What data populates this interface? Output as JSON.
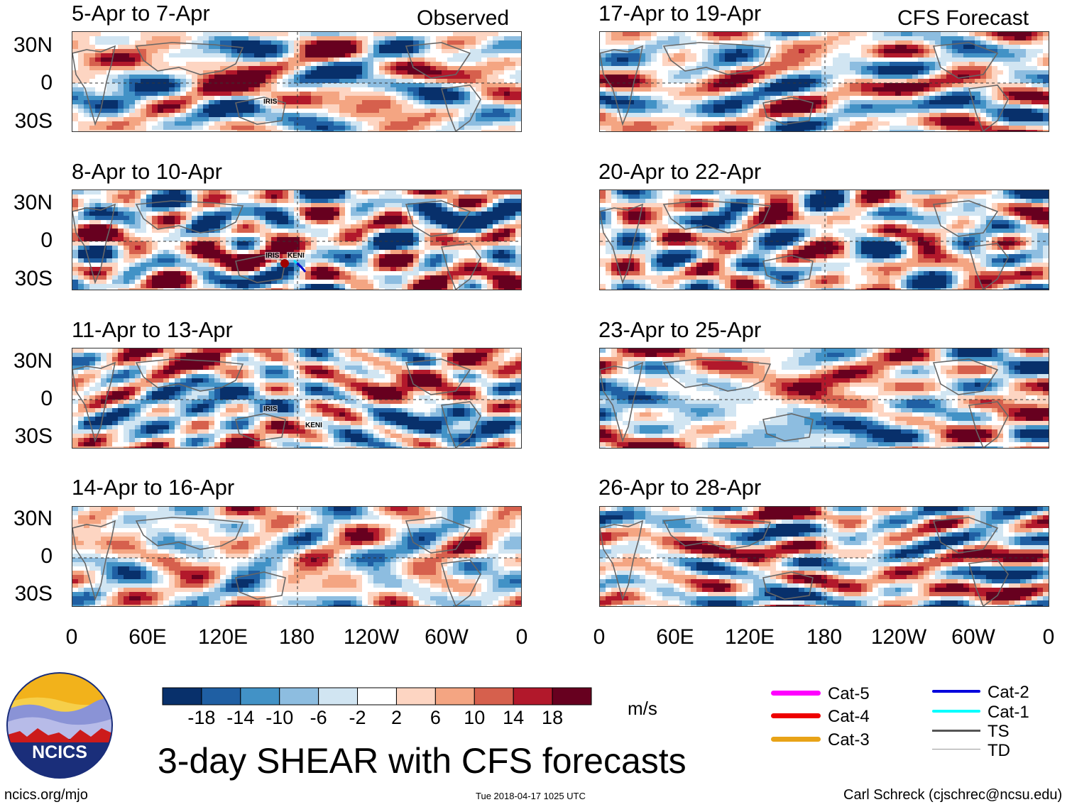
{
  "header": {
    "observed_label": "Observed",
    "forecast_label": "CFS Forecast"
  },
  "chart_data": {
    "type": "heatmap",
    "title": "3-day SHEAR with CFS forecasts",
    "units": "m/s",
    "y_ticks": [
      "30N",
      "0",
      "30S"
    ],
    "x_ticks": [
      "0",
      "60E",
      "120E",
      "180",
      "120W",
      "60W",
      "0"
    ],
    "colorbar": {
      "levels": [
        "-18",
        "-14",
        "-10",
        "-6",
        "-2",
        "2",
        "6",
        "10",
        "14",
        "18"
      ],
      "colors": [
        "#08306b",
        "#1f5fa3",
        "#4292c6",
        "#8dbde0",
        "#d1e5f2",
        "#ffffff",
        "#fdd5c2",
        "#f4a582",
        "#d6604d",
        "#b2182b",
        "#67001f"
      ]
    },
    "panels": [
      {
        "column": "observed",
        "period": "5-Apr to 7-Apr",
        "storms": [
          "IRIS"
        ]
      },
      {
        "column": "observed",
        "period": "8-Apr to 10-Apr",
        "storms": [
          "IRIS",
          "KENI"
        ]
      },
      {
        "column": "observed",
        "period": "11-Apr to 13-Apr",
        "storms": [
          "IRIS",
          "KENI"
        ]
      },
      {
        "column": "observed",
        "period": "14-Apr to 16-Apr",
        "storms": []
      },
      {
        "column": "forecast",
        "period": "17-Apr to 19-Apr",
        "storms": []
      },
      {
        "column": "forecast",
        "period": "20-Apr to 22-Apr",
        "storms": []
      },
      {
        "column": "forecast",
        "period": "23-Apr to 25-Apr",
        "storms": []
      },
      {
        "column": "forecast",
        "period": "26-Apr to 28-Apr",
        "storms": []
      }
    ]
  },
  "legend": {
    "categories": [
      {
        "label": "Cat-5",
        "color": "#ff00ff"
      },
      {
        "label": "Cat-4",
        "color": "#ee0000"
      },
      {
        "label": "Cat-3",
        "color": "#e8a317"
      },
      {
        "label": "Cat-2",
        "color": "#0000dd"
      },
      {
        "label": "Cat-1",
        "color": "#00ffff"
      },
      {
        "label": "TS",
        "color": "#555555"
      },
      {
        "label": "TD",
        "color": "#999999"
      }
    ]
  },
  "logo": {
    "text": "NCICS"
  },
  "footer": {
    "url": "ncics.org/mjo",
    "timestamp": "Tue 2018-04-17 1025 UTC",
    "author": "Carl Schreck (cjschrec@ncsu.edu)"
  }
}
